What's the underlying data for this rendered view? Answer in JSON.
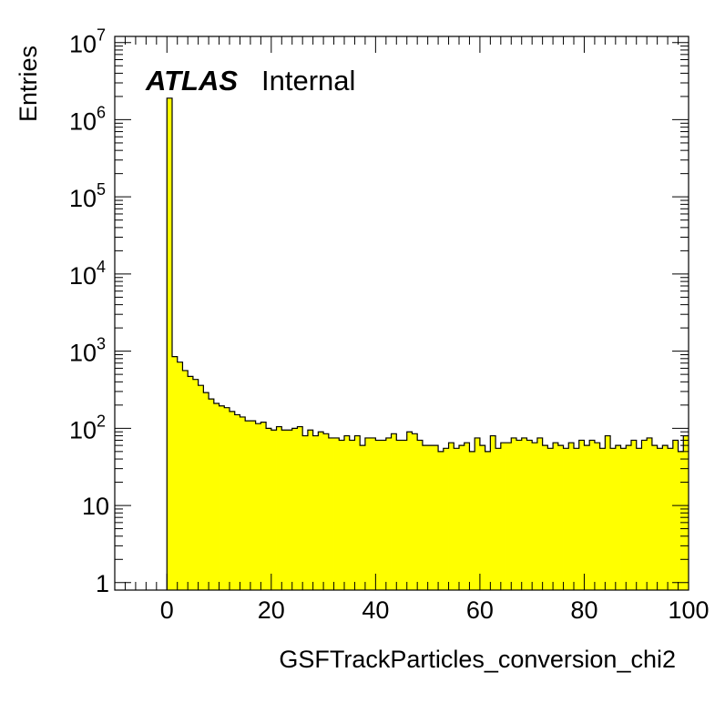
{
  "chart_data": {
    "type": "bar",
    "histogram": true,
    "fill_color": "#ffff00",
    "xlabel": "GSFTrackParticles_conversion_chi2",
    "ylabel": "Entries",
    "xlim": [
      -10,
      100
    ],
    "ylim": [
      0.8,
      12000000
    ],
    "y_log_scale": true,
    "grid": false,
    "bin_width": 1,
    "x_start": 0,
    "x_ticks": [
      "0",
      "20",
      "40",
      "60",
      "80",
      "100"
    ],
    "y_tick_labels": [
      {
        "base": "1",
        "exp": ""
      },
      {
        "base": "10",
        "exp": ""
      },
      {
        "base": "10",
        "exp": "2"
      },
      {
        "base": "10",
        "exp": "3"
      },
      {
        "base": "10",
        "exp": "4"
      },
      {
        "base": "10",
        "exp": "5"
      },
      {
        "base": "10",
        "exp": "6"
      },
      {
        "base": "10",
        "exp": "7"
      }
    ],
    "values": [
      1900000,
      850,
      720,
      560,
      470,
      430,
      360,
      290,
      240,
      210,
      195,
      185,
      165,
      150,
      140,
      125,
      125,
      115,
      120,
      100,
      95,
      105,
      95,
      95,
      100,
      105,
      80,
      95,
      80,
      90,
      85,
      75,
      75,
      70,
      80,
      70,
      80,
      60,
      75,
      75,
      70,
      70,
      75,
      85,
      70,
      70,
      90,
      85,
      70,
      60,
      60,
      60,
      50,
      55,
      65,
      55,
      60,
      65,
      50,
      75,
      60,
      50,
      80,
      55,
      65,
      65,
      75,
      70,
      75,
      70,
      65,
      75,
      60,
      55,
      65,
      60,
      55,
      65,
      55,
      70,
      60,
      70,
      65,
      55,
      80,
      55,
      60,
      55,
      60,
      70,
      55,
      70,
      75,
      60,
      55,
      60,
      55,
      70,
      50,
      80
    ],
    "annotations": {
      "atlas": "ATLAS",
      "status": "Internal"
    }
  }
}
